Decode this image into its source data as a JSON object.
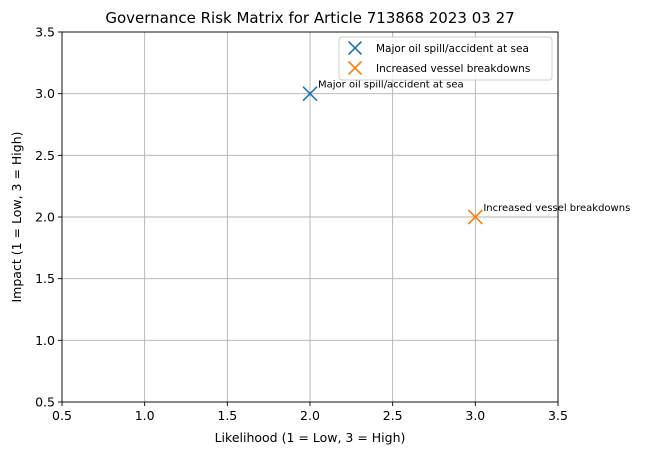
{
  "chart_data": {
    "type": "scatter",
    "title": "Governance Risk Matrix for Article 713868 2023 03 27",
    "xlabel": "Likelihood (1 = Low, 3 = High)",
    "ylabel": "Impact (1 = Low, 3 = High)",
    "xlim": [
      0.5,
      3.5
    ],
    "ylim": [
      0.5,
      3.5
    ],
    "xticks": [
      0.5,
      1.0,
      1.5,
      2.0,
      2.5,
      3.0,
      3.5
    ],
    "yticks": [
      0.5,
      1.0,
      1.5,
      2.0,
      2.5,
      3.0,
      3.5
    ],
    "xtick_labels": [
      "0.5",
      "1.0",
      "1.5",
      "2.0",
      "2.5",
      "3.0",
      "3.5"
    ],
    "ytick_labels": [
      "0.5",
      "1.0",
      "1.5",
      "2.0",
      "2.5",
      "3.0",
      "3.5"
    ],
    "grid": true,
    "legend_position": "top-right",
    "marker": "x",
    "series": [
      {
        "name": "Major oil spill/accident at sea",
        "x": [
          2.0
        ],
        "y": [
          3.0
        ],
        "color": "#1f77b4",
        "annotation": "Major oil spill/accident at sea"
      },
      {
        "name": "Increased vessel breakdowns",
        "x": [
          3.0
        ],
        "y": [
          2.0
        ],
        "color": "#ff7f0e",
        "annotation": "Increased vessel breakdowns"
      }
    ]
  }
}
